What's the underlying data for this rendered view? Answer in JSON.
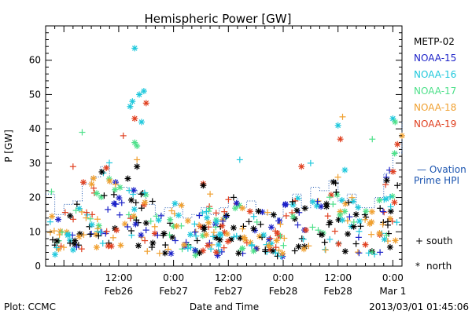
{
  "chart_data": {
    "type": "scatter",
    "title": "Hemispheric Power [GW]",
    "xlabel": "Date and Time",
    "ylabel": "P [GW]",
    "ylim": [
      0,
      70
    ],
    "yticks": [
      0,
      10,
      20,
      30,
      40,
      50,
      60
    ],
    "xlim": [
      "2013-02-25T20:00",
      "2013-03-01T02:00"
    ],
    "xticks": [
      {
        "t": "2013-02-26T12:00",
        "top": "12:00",
        "bottom": "Feb26"
      },
      {
        "t": "2013-02-27T00:00",
        "top": "0:00",
        "bottom": "Feb27"
      },
      {
        "t": "2013-02-27T12:00",
        "top": "12:00",
        "bottom": "Feb27"
      },
      {
        "t": "2013-02-28T00:00",
        "top": "0:00",
        "bottom": "Feb28"
      },
      {
        "t": "2013-02-28T12:00",
        "top": "12:00",
        "bottom": "Feb28"
      },
      {
        "t": "2013-03-01T00:00",
        "top": "0:00",
        "bottom": "Mar 1"
      }
    ],
    "grid": false,
    "legend_position": "right",
    "series": [
      {
        "name": "METP-02",
        "color": "#000000"
      },
      {
        "name": "NOAA-15",
        "color": "#1c22c8"
      },
      {
        "name": "NOAA-16",
        "color": "#1fc8dc"
      },
      {
        "name": "NOAA-17",
        "color": "#4ee08a"
      },
      {
        "name": "NOAA-18",
        "color": "#f0a030"
      },
      {
        "name": "NOAA-19",
        "color": "#e04020"
      }
    ],
    "ovation": {
      "label_line1": "— Ovation",
      "label_line2": "Prime HPI",
      "color": "#1c55b0",
      "x": [
        "2013-02-25T20:00",
        "2013-02-25T22:00",
        "2013-02-26T00:00",
        "2013-02-26T02:00",
        "2013-02-26T04:00",
        "2013-02-26T06:00",
        "2013-02-26T08:00",
        "2013-02-26T10:00",
        "2013-02-26T12:00",
        "2013-02-26T14:00",
        "2013-02-26T16:00",
        "2013-02-26T18:00",
        "2013-02-26T20:00",
        "2013-02-26T22:00",
        "2013-02-27T00:00",
        "2013-02-27T02:00",
        "2013-02-27T04:00",
        "2013-02-27T06:00",
        "2013-02-27T08:00",
        "2013-02-27T10:00",
        "2013-02-27T12:00",
        "2013-02-27T14:00",
        "2013-02-27T16:00",
        "2013-02-27T18:00",
        "2013-02-27T20:00",
        "2013-02-27T22:00",
        "2013-02-28T00:00",
        "2013-02-28T02:00",
        "2013-02-28T04:00",
        "2013-02-28T06:00",
        "2013-02-28T08:00",
        "2013-02-28T10:00",
        "2013-02-28T12:00",
        "2013-02-28T14:00",
        "2013-02-28T16:00",
        "2013-02-28T18:00",
        "2013-02-28T20:00",
        "2013-02-28T22:00",
        "2013-03-01T00:00",
        "2013-03-01T02:00"
      ],
      "y": [
        21,
        15,
        18,
        19,
        24,
        26,
        29,
        24,
        23,
        22,
        21,
        18,
        15,
        17,
        18,
        14,
        15,
        17,
        15,
        17,
        20,
        17,
        19,
        16,
        15,
        14,
        18,
        21,
        17,
        23,
        22,
        25,
        19,
        21,
        17,
        17,
        20,
        27,
        33,
        42
      ]
    },
    "points": [
      {
        "s": 2,
        "m": "*",
        "t": "2013-02-26T15:30",
        "y": 63.5
      },
      {
        "s": 2,
        "m": "*",
        "t": "2013-02-26T14:30",
        "y": 46.5
      },
      {
        "s": 2,
        "m": "*",
        "t": "2013-02-26T15:00",
        "y": 48
      },
      {
        "s": 2,
        "m": "*",
        "t": "2013-02-26T16:30",
        "y": 50
      },
      {
        "s": 2,
        "m": "*",
        "t": "2013-02-26T17:30",
        "y": 51
      },
      {
        "s": 2,
        "m": "*",
        "t": "2013-02-26T17:00",
        "y": 42
      },
      {
        "s": 2,
        "m": "*",
        "t": "2013-02-28T12:00",
        "y": 41
      },
      {
        "s": 2,
        "m": "*",
        "t": "2013-03-01T00:00",
        "y": 43
      },
      {
        "s": 2,
        "m": "+",
        "t": "2013-02-27T14:30",
        "y": 31
      },
      {
        "s": 2,
        "m": "+",
        "t": "2013-02-28T06:00",
        "y": 30
      },
      {
        "s": 2,
        "m": "*",
        "t": "2013-02-28T13:30",
        "y": 28
      },
      {
        "s": 3,
        "m": "+",
        "t": "2013-02-26T04:00",
        "y": 39
      },
      {
        "s": 3,
        "m": "*",
        "t": "2013-02-26T15:30",
        "y": 36
      },
      {
        "s": 3,
        "m": "*",
        "t": "2013-02-26T16:00",
        "y": 35
      },
      {
        "s": 3,
        "m": "+",
        "t": "2013-02-28T19:30",
        "y": 37
      },
      {
        "s": 3,
        "m": "*",
        "t": "2013-03-01T00:30",
        "y": 42
      },
      {
        "s": 4,
        "m": "+",
        "t": "2013-02-28T13:00",
        "y": 43.5
      },
      {
        "s": 4,
        "m": "+",
        "t": "2013-02-26T16:00",
        "y": 31
      },
      {
        "s": 4,
        "m": "+",
        "t": "2013-02-27T08:00",
        "y": 21
      },
      {
        "s": 4,
        "m": "*",
        "t": "2013-03-01T02:00",
        "y": 38
      },
      {
        "s": 5,
        "m": "*",
        "t": "2013-02-26T15:30",
        "y": 43
      },
      {
        "s": 5,
        "m": "*",
        "t": "2013-02-26T18:00",
        "y": 47.5
      },
      {
        "s": 5,
        "m": "+",
        "t": "2013-02-26T13:00",
        "y": 38
      },
      {
        "s": 5,
        "m": "*",
        "t": "2013-02-28T12:30",
        "y": 37
      },
      {
        "s": 5,
        "m": "*",
        "t": "2013-03-01T01:00",
        "y": 35.5
      },
      {
        "s": 5,
        "m": "*",
        "t": "2013-02-28T04:00",
        "y": 29
      },
      {
        "s": 5,
        "m": "+",
        "t": "2013-02-26T02:00",
        "y": 29
      },
      {
        "s": 5,
        "m": "*",
        "t": "2013-02-27T06:30",
        "y": 24
      },
      {
        "s": 0,
        "m": "*",
        "t": "2013-02-26T16:00",
        "y": 29
      },
      {
        "s": 0,
        "m": "*",
        "t": "2013-02-26T14:00",
        "y": 25.5
      },
      {
        "s": 0,
        "m": "*",
        "t": "2013-02-27T06:30",
        "y": 23.5
      },
      {
        "s": 0,
        "m": "*",
        "t": "2013-02-28T11:00",
        "y": 24.5
      },
      {
        "s": 0,
        "m": "+",
        "t": "2013-03-01T01:00",
        "y": 23.5
      }
    ],
    "cluster_seed": 7
  },
  "legend_markers": {
    "south": {
      "symbol": "+",
      "label": "south"
    },
    "north": {
      "symbol": "*",
      "label": "north"
    }
  },
  "footer": {
    "plot_label": "Plot: CCMC",
    "timestamp": "2013/03/01 01:45:06"
  }
}
